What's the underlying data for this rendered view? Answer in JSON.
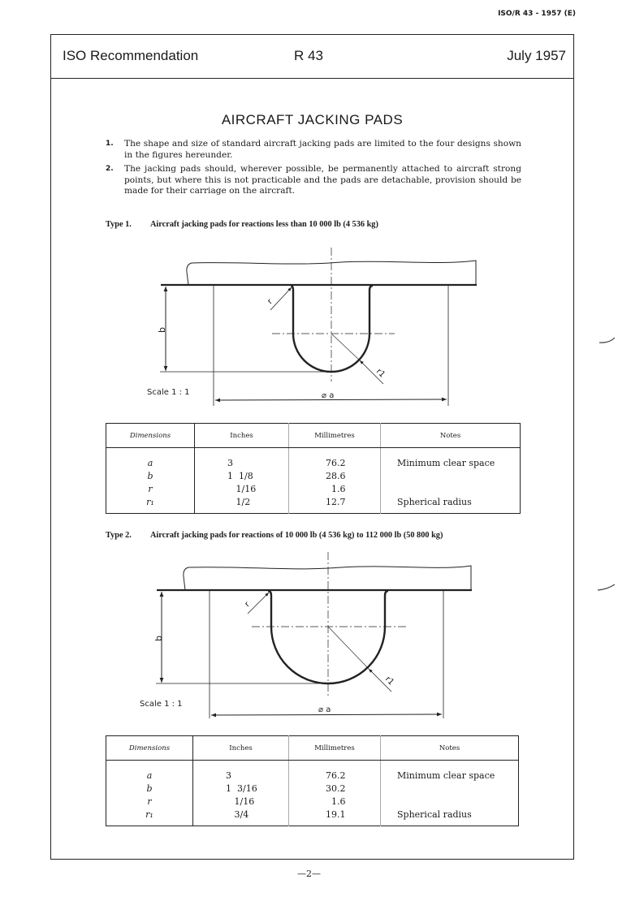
{
  "doc_id": "ISO/R 43 - 1957 (E)",
  "header": {
    "left": "ISO Recommendation",
    "center": "R 43",
    "right": "July 1957"
  },
  "title": "AIRCRAFT JACKING PADS",
  "items": [
    {
      "num": "1.",
      "text": "The shape and size of standard aircraft jacking pads are limited to the four designs shown in the figures hereunder."
    },
    {
      "num": "2.",
      "text": "The jacking pads should, wherever possible, be permanently attached to aircraft strong points, but where this is not practicable and the pads are detachable, provision should be made for their carriage on the aircraft."
    }
  ],
  "types": [
    {
      "label": "Type 1.",
      "heading": "Aircraft jacking pads for reactions less than 10 000 lb (4 536 kg)",
      "figure": {
        "scale": "Scale 1 : 1",
        "dim_a": "⌀ a",
        "dim_b": "b",
        "dim_r": "r",
        "dim_r1": "r1"
      },
      "table": {
        "headers": [
          "Dimensions",
          "Inches",
          "Millimetres",
          "Notes"
        ],
        "rows": [
          [
            "a",
            "3",
            "76.2",
            "Minimum clear space"
          ],
          [
            "b",
            "1  1/8",
            "28.6",
            ""
          ],
          [
            "r",
            "   1/16",
            "  1.6",
            ""
          ],
          [
            "r₁",
            "   1/2",
            "12.7",
            "Spherical radius"
          ]
        ]
      }
    },
    {
      "label": "Type 2.",
      "heading": "Aircraft jacking pads for reactions of 10 000 lb (4 536 kg) to 112 000 lb (50 800 kg)",
      "figure": {
        "scale": "Scale 1 : 1",
        "dim_a": "⌀ a",
        "dim_b": "b",
        "dim_r": "r",
        "dim_r1": "r1"
      },
      "table": {
        "headers": [
          "Dimensions",
          "Inches",
          "Millimetres",
          "Notes"
        ],
        "rows": [
          [
            "a",
            "3",
            "76.2",
            "Minimum clear space"
          ],
          [
            "b",
            "1  3/16",
            "30.2",
            ""
          ],
          [
            "r",
            "   1/16",
            "  1.6",
            ""
          ],
          [
            "r₁",
            "   3/4",
            "19.1",
            "Spherical radius"
          ]
        ]
      }
    }
  ],
  "page_number": "—2—"
}
